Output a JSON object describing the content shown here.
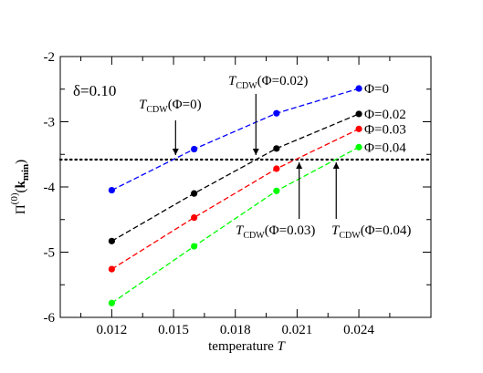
{
  "chart_data": {
    "type": "line",
    "xlabel": "temperature",
    "xlabel_var": "T",
    "ylabel": {
      "main": "Π",
      "sup": "(0)",
      "paren_open": "(",
      "arg": "k",
      "arg_sub": "min",
      "paren_close": ")"
    },
    "xlim": [
      0.0095,
      0.0275
    ],
    "ylim": [
      -6,
      -2
    ],
    "xticks": [
      0.012,
      0.015,
      0.018,
      0.021,
      0.024
    ],
    "xtick_labels": [
      "0.012",
      "0.015",
      "0.018",
      "0.021",
      "0.024"
    ],
    "yticks": [
      -6,
      -5,
      -4,
      -3,
      -2
    ],
    "ytick_labels": [
      "-6",
      "-5",
      "-4",
      "-3",
      "-2"
    ],
    "grid": false,
    "parameter_label": "δ=0.10",
    "threshold_line": {
      "y": -3.58,
      "style": "dotted"
    },
    "series": [
      {
        "name": "Φ=0",
        "color": "#0000ff",
        "x": [
          0.012,
          0.016,
          0.02,
          0.024
        ],
        "y": [
          -4.05,
          -3.42,
          -2.87,
          -2.49
        ]
      },
      {
        "name": "Φ=0.02",
        "color": "#000000",
        "x": [
          0.012,
          0.016,
          0.02,
          0.024
        ],
        "y": [
          -4.83,
          -4.1,
          -3.41,
          -2.88
        ]
      },
      {
        "name": "Φ=0.03",
        "color": "#ff0000",
        "x": [
          0.012,
          0.016,
          0.02,
          0.024
        ],
        "y": [
          -5.26,
          -4.47,
          -3.72,
          -3.11
        ]
      },
      {
        "name": "Φ=0.04",
        "color": "#00ff00",
        "x": [
          0.012,
          0.016,
          0.02,
          0.024
        ],
        "y": [
          -5.78,
          -4.91,
          -4.06,
          -3.39
        ]
      }
    ],
    "annotations": [
      {
        "prefix": "T",
        "sub": "CDW",
        "text": "(Φ=0)",
        "arrow_x": 0.0151,
        "arrow_dir": "down"
      },
      {
        "prefix": "T",
        "sub": "CDW",
        "text": "(Φ=0.02)",
        "arrow_x": 0.019,
        "arrow_dir": "down"
      },
      {
        "prefix": "T",
        "sub": "CDW",
        "text": "(Φ=0.03)",
        "arrow_x": 0.0211,
        "arrow_dir": "up"
      },
      {
        "prefix": "T",
        "sub": "CDW",
        "text": "(Φ=0.04)",
        "arrow_x": 0.0229,
        "arrow_dir": "up"
      }
    ]
  }
}
